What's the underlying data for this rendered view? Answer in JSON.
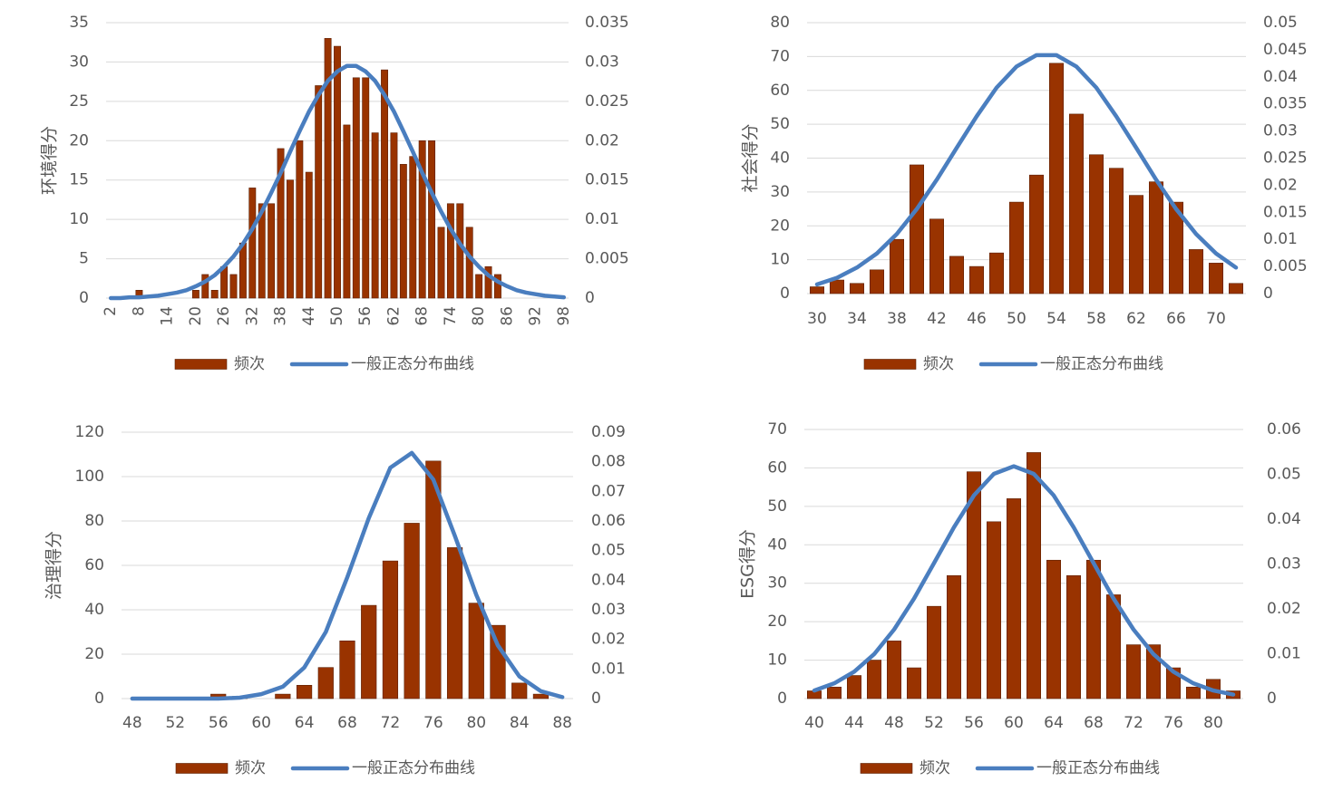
{
  "chart_data": [
    {
      "type": "bar_line",
      "y_label": "环境得分",
      "categories": [
        2,
        null,
        null,
        8,
        null,
        null,
        14,
        null,
        null,
        20,
        null,
        null,
        26,
        null,
        null,
        32,
        null,
        null,
        38,
        null,
        null,
        44,
        null,
        null,
        50,
        null,
        null,
        56,
        null,
        null,
        62,
        null,
        null,
        68,
        null,
        null,
        74,
        null,
        null,
        80,
        null,
        null,
        86,
        null,
        null,
        92,
        null,
        null,
        98
      ],
      "series": [
        {
          "name": "频次",
          "color": "#993300",
          "values": [
            0,
            0,
            0,
            1,
            0,
            0,
            0,
            0,
            0,
            1,
            3,
            1,
            4,
            3,
            7,
            14,
            12,
            12,
            19,
            15,
            20,
            16,
            27,
            33,
            32,
            22,
            28,
            28,
            21,
            29,
            21,
            17,
            18,
            20,
            20,
            9,
            12,
            12,
            9,
            3,
            4,
            3,
            0,
            0,
            0,
            0,
            0,
            0,
            0
          ]
        },
        {
          "name": "一般正态分布曲线",
          "color": "#4a7ebf",
          "axis": "y2",
          "values": [
            0,
            0,
            0.0001,
            0.0001,
            0.0002,
            0.0003,
            0.0005,
            0.0007,
            0.001,
            0.0015,
            0.0021,
            0.0029,
            0.004,
            0.0053,
            0.0069,
            0.0088,
            0.011,
            0.0134,
            0.0159,
            0.0186,
            0.0212,
            0.0237,
            0.0258,
            0.0276,
            0.0288,
            0.0295,
            0.0295,
            0.0288,
            0.0276,
            0.0258,
            0.0237,
            0.0212,
            0.0186,
            0.0159,
            0.0134,
            0.011,
            0.0088,
            0.0069,
            0.0053,
            0.004,
            0.0029,
            0.0021,
            0.0015,
            0.001,
            0.0007,
            0.0005,
            0.0003,
            0.0002,
            0.0001
          ]
        }
      ],
      "ylim": [
        0,
        35
      ],
      "yticks": [
        0,
        5,
        10,
        15,
        20,
        25,
        30,
        35
      ],
      "y2lim": [
        0,
        0.035
      ],
      "y2ticks": [
        0,
        0.005,
        0.01,
        0.015,
        0.02,
        0.025,
        0.03,
        0.035
      ],
      "grid": true,
      "legend": "bottom"
    },
    {
      "type": "bar_line",
      "y_label": "社会得分",
      "categories": [
        30,
        null,
        34,
        null,
        38,
        null,
        42,
        null,
        46,
        null,
        50,
        null,
        54,
        null,
        58,
        null,
        62,
        null,
        66,
        null,
        70,
        null
      ],
      "series": [
        {
          "name": "频次",
          "color": "#993300",
          "values": [
            2,
            4,
            3,
            7,
            16,
            38,
            22,
            11,
            8,
            12,
            27,
            35,
            68,
            53,
            41,
            37,
            29,
            33,
            27,
            13,
            9,
            3
          ]
        },
        {
          "name": "一般正态分布曲线",
          "color": "#4a7ebf",
          "axis": "y2",
          "values": [
            0.0017,
            0.0029,
            0.0048,
            0.0074,
            0.011,
            0.0156,
            0.021,
            0.0269,
            0.0327,
            0.038,
            0.0419,
            0.044,
            0.044,
            0.0419,
            0.038,
            0.0327,
            0.0269,
            0.021,
            0.0156,
            0.011,
            0.0074,
            0.0048
          ]
        }
      ],
      "ylim": [
        0,
        80
      ],
      "yticks": [
        0,
        10,
        20,
        30,
        40,
        50,
        60,
        70,
        80
      ],
      "y2lim": [
        0,
        0.05
      ],
      "y2ticks": [
        0,
        0.005,
        0.01,
        0.015,
        0.02,
        0.025,
        0.03,
        0.035,
        0.04,
        0.045,
        0.05
      ],
      "grid": true,
      "legend": "bottom"
    },
    {
      "type": "bar_line",
      "y_label": "治理得分",
      "categories": [
        48,
        null,
        52,
        null,
        56,
        null,
        60,
        null,
        64,
        null,
        68,
        null,
        72,
        null,
        76,
        null,
        80,
        null,
        84,
        null,
        88
      ],
      "series": [
        {
          "name": "频次",
          "color": "#993300",
          "values": [
            0,
            0,
            0,
            0,
            2,
            1,
            0,
            2,
            6,
            14,
            26,
            42,
            62,
            79,
            107,
            68,
            43,
            33,
            7,
            2,
            0
          ]
        },
        {
          "name": "一般正态分布曲线",
          "color": "#4a7ebf",
          "axis": "y2",
          "values": [
            0,
            0,
            0,
            0,
            0,
            0.0003,
            0.0015,
            0.004,
            0.0105,
            0.0225,
            0.041,
            0.061,
            0.078,
            0.083,
            0.074,
            0.055,
            0.035,
            0.018,
            0.0075,
            0.0025,
            0.0005
          ]
        }
      ],
      "ylim": [
        0,
        120
      ],
      "yticks": [
        0,
        20,
        40,
        60,
        80,
        100,
        120
      ],
      "y2lim": [
        0,
        0.09
      ],
      "y2ticks": [
        0,
        0.01,
        0.02,
        0.03,
        0.04,
        0.05,
        0.06,
        0.07,
        0.08,
        0.09
      ],
      "grid": true,
      "legend": "bottom"
    },
    {
      "type": "bar_line",
      "y_label": "ESG得分",
      "categories": [
        40,
        null,
        44,
        null,
        48,
        null,
        52,
        null,
        56,
        null,
        60,
        null,
        64,
        null,
        68,
        null,
        72,
        null,
        76,
        null,
        80,
        null
      ],
      "series": [
        {
          "name": "频次",
          "color": "#993300",
          "values": [
            2,
            3,
            6,
            10,
            15,
            8,
            24,
            32,
            59,
            46,
            52,
            64,
            36,
            32,
            36,
            27,
            14,
            14,
            8,
            3,
            5,
            2
          ]
        },
        {
          "name": "一般正态分布曲线",
          "color": "#4a7ebf",
          "axis": "y2",
          "values": [
            0.0018,
            0.0034,
            0.006,
            0.0099,
            0.0154,
            0.0223,
            0.0302,
            0.0382,
            0.0453,
            0.0501,
            0.0518,
            0.0501,
            0.0453,
            0.0382,
            0.0302,
            0.0223,
            0.0154,
            0.0099,
            0.006,
            0.0034,
            0.0018,
            0.0009
          ]
        }
      ],
      "ylim": [
        0,
        70
      ],
      "yticks": [
        0,
        10,
        20,
        30,
        40,
        50,
        60,
        70
      ],
      "y2lim": [
        0,
        0.06
      ],
      "y2ticks": [
        0,
        0.01,
        0.02,
        0.03,
        0.04,
        0.05,
        0.06
      ],
      "grid": true,
      "legend": "bottom"
    }
  ]
}
